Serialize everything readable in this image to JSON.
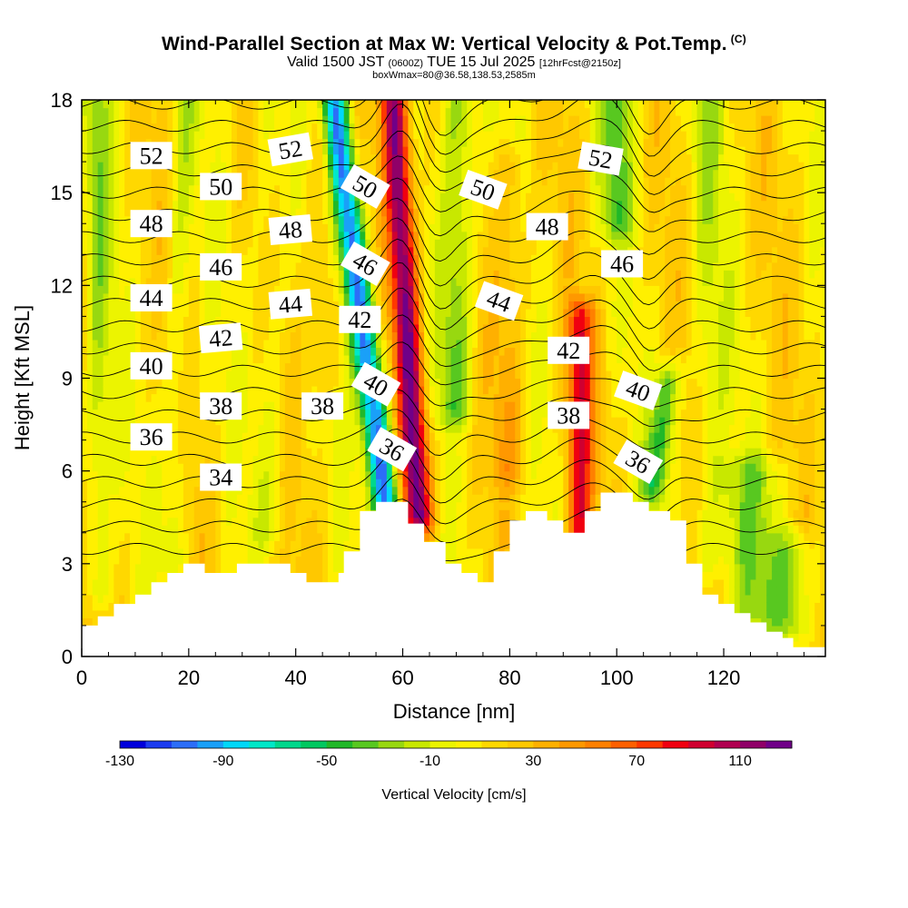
{
  "title": {
    "main": "Wind-Parallel Section at Max W: Vertical Velocity & Pot.Temp.",
    "copyright": "(C)",
    "valid": "Valid 1500 JST",
    "zulu": "(0600Z)",
    "date": "TUE 15 Jul 2025",
    "forecast": "[12hrFcst@2150z]",
    "box_info": "boxWmax=80@36.58,138.53,2585m"
  },
  "chart_data": {
    "type": "heatmap",
    "xlabel": "Distance [nm]",
    "ylabel": "Height [Kft MSL]",
    "xlim": [
      0,
      139
    ],
    "ylim": [
      0,
      18
    ],
    "x_ticks": [
      "0",
      "20",
      "40",
      "60",
      "80",
      "100",
      "120"
    ],
    "x_tick_values": [
      0,
      20,
      40,
      60,
      80,
      100,
      120
    ],
    "y_ticks": [
      "0",
      "3",
      "6",
      "9",
      "12",
      "15",
      "18"
    ],
    "y_tick_values": [
      0,
      3,
      6,
      9,
      12,
      15,
      18
    ],
    "colorbar": {
      "label": "Vertical Velocity [cm/s]",
      "min": -130,
      "max": 130,
      "step": 10,
      "tick_labels": [
        "-130",
        "-90",
        "-50",
        "-10",
        "30",
        "70",
        "110"
      ],
      "tick_values": [
        -130,
        -90,
        -50,
        -10,
        30,
        70,
        110
      ],
      "colors": [
        "#0000dc",
        "#1c3cf0",
        "#2c6ef8",
        "#1aa0f8",
        "#00d8f8",
        "#00e8c8",
        "#00d88c",
        "#00c860",
        "#20b828",
        "#58c820",
        "#98d810",
        "#c8e800",
        "#ecf400",
        "#fff000",
        "#ffd800",
        "#ffc800",
        "#ffb000",
        "#ff9800",
        "#ff8000",
        "#ff6000",
        "#ff3800",
        "#f00010",
        "#d00030",
        "#b00050",
        "#900068",
        "#700088"
      ]
    },
    "terrain_kft": [
      [
        0,
        1.0
      ],
      [
        3,
        1.0
      ],
      [
        3,
        1.3
      ],
      [
        6,
        1.3
      ],
      [
        6,
        1.7
      ],
      [
        10,
        1.7
      ],
      [
        10,
        2.0
      ],
      [
        13,
        2.0
      ],
      [
        13,
        2.4
      ],
      [
        16,
        2.4
      ],
      [
        16,
        2.7
      ],
      [
        19,
        2.7
      ],
      [
        19,
        3.0
      ],
      [
        23,
        3.0
      ],
      [
        23,
        2.7
      ],
      [
        29,
        2.7
      ],
      [
        29,
        3.0
      ],
      [
        39,
        3.0
      ],
      [
        39,
        2.7
      ],
      [
        42,
        2.7
      ],
      [
        42,
        2.4
      ],
      [
        48,
        2.4
      ],
      [
        48,
        2.7
      ],
      [
        49,
        2.7
      ],
      [
        49,
        3.4
      ],
      [
        52,
        3.4
      ],
      [
        52,
        4.7
      ],
      [
        55,
        4.7
      ],
      [
        55,
        5.0
      ],
      [
        61,
        5.0
      ],
      [
        61,
        4.3
      ],
      [
        64,
        4.3
      ],
      [
        64,
        3.7
      ],
      [
        68,
        3.7
      ],
      [
        68,
        3.0
      ],
      [
        71,
        3.0
      ],
      [
        71,
        2.7
      ],
      [
        74,
        2.7
      ],
      [
        74,
        2.4
      ],
      [
        77,
        2.4
      ],
      [
        77,
        3.4
      ],
      [
        80,
        3.4
      ],
      [
        80,
        4.4
      ],
      [
        83,
        4.4
      ],
      [
        83,
        4.7
      ],
      [
        87,
        4.7
      ],
      [
        87,
        4.4
      ],
      [
        90,
        4.4
      ],
      [
        90,
        4.0
      ],
      [
        94,
        4.0
      ],
      [
        94,
        4.7
      ],
      [
        97,
        4.7
      ],
      [
        97,
        5.3
      ],
      [
        103,
        5.3
      ],
      [
        103,
        5.0
      ],
      [
        106,
        5.0
      ],
      [
        106,
        4.7
      ],
      [
        110,
        4.7
      ],
      [
        110,
        4.4
      ],
      [
        113,
        4.4
      ],
      [
        113,
        3.0
      ],
      [
        116,
        3.0
      ],
      [
        116,
        2.0
      ],
      [
        119,
        2.0
      ],
      [
        119,
        1.7
      ],
      [
        122,
        1.7
      ],
      [
        122,
        1.4
      ],
      [
        125,
        1.4
      ],
      [
        125,
        1.1
      ],
      [
        128,
        1.1
      ],
      [
        128,
        0.8
      ],
      [
        131,
        0.8
      ],
      [
        131,
        0.6
      ],
      [
        133,
        0.6
      ],
      [
        133,
        0.3
      ],
      [
        139,
        0.3
      ]
    ],
    "w_features": [
      {
        "x": 57,
        "y0": 4.8,
        "y1": 18,
        "lean": -0.75,
        "width": 2.6,
        "amp": -125
      },
      {
        "x": 63,
        "y0": 4.5,
        "y1": 18,
        "lean": -0.35,
        "width": 2.6,
        "amp": 115
      },
      {
        "x": 70,
        "y0": 8,
        "y1": 18,
        "lean": 0.05,
        "width": 3.2,
        "amp": -45
      },
      {
        "x": 93,
        "y0": 4.0,
        "y1": 11,
        "lean": 0.05,
        "width": 2.4,
        "amp": 70
      },
      {
        "x": 107,
        "y0": 5.5,
        "y1": 9,
        "lean": 0.8,
        "width": 2.2,
        "amp": -55
      },
      {
        "x": 100,
        "y0": 14,
        "y1": 18,
        "lean": 0.0,
        "width": 3.0,
        "amp": -40
      },
      {
        "x": 3,
        "y0": 2,
        "y1": 18,
        "lean": 0.0,
        "width": 2.5,
        "amp": -30
      },
      {
        "x": 17,
        "y0": 3,
        "y1": 18,
        "lean": 0.15,
        "width": 2.3,
        "amp": -22
      },
      {
        "x": 35,
        "y0": 4,
        "y1": 18,
        "lean": 0.0,
        "width": 3.0,
        "amp": -18
      },
      {
        "x": 45,
        "y0": 9,
        "y1": 18,
        "lean": 0.0,
        "width": 2.8,
        "amp": 20
      },
      {
        "x": 80,
        "y0": 6,
        "y1": 16,
        "lean": 0.0,
        "width": 3.0,
        "amp": 25
      },
      {
        "x": 117,
        "y0": 3,
        "y1": 18,
        "lean": 0.0,
        "width": 3.5,
        "amp": -20
      },
      {
        "x": 125,
        "y0": 1.5,
        "y1": 6,
        "lean": 0.0,
        "width": 6,
        "amp": -30
      },
      {
        "x": 133,
        "y0": 1,
        "y1": 3.5,
        "lean": 0.0,
        "width": 4,
        "amp": -35
      }
    ],
    "theta_contours": {
      "min": 33,
      "max": 53,
      "step": 1,
      "base_height_kft": 4.2,
      "kft_per_unit": 0.72,
      "perturbations": [
        {
          "x": 60,
          "width": 5,
          "dy": 0.9
        },
        {
          "x": 66,
          "width": 5,
          "dy": -0.6
        },
        {
          "x": 95,
          "width": 8,
          "dy": 0.5
        },
        {
          "x": 106,
          "width": 4,
          "dy": -0.5
        }
      ]
    },
    "contour_labels": [
      {
        "value": "52",
        "x": 13,
        "y": 16.2,
        "angle": 0
      },
      {
        "value": "52",
        "x": 39,
        "y": 16.4,
        "angle": -10
      },
      {
        "value": "52",
        "x": 97,
        "y": 16.1,
        "angle": 10
      },
      {
        "value": "50",
        "x": 26,
        "y": 15.2,
        "angle": 0
      },
      {
        "value": "50",
        "x": 53,
        "y": 15.2,
        "angle": 30
      },
      {
        "value": "50",
        "x": 75,
        "y": 15.1,
        "angle": 20
      },
      {
        "value": "48",
        "x": 13,
        "y": 14.0,
        "angle": 0
      },
      {
        "value": "48",
        "x": 39,
        "y": 13.8,
        "angle": -5
      },
      {
        "value": "48",
        "x": 87,
        "y": 13.9,
        "angle": 0
      },
      {
        "value": "46",
        "x": 26,
        "y": 12.6,
        "angle": 0
      },
      {
        "value": "46",
        "x": 53,
        "y": 12.7,
        "angle": 30
      },
      {
        "value": "46",
        "x": 101,
        "y": 12.7,
        "angle": 0
      },
      {
        "value": "44",
        "x": 13,
        "y": 11.6,
        "angle": 0
      },
      {
        "value": "44",
        "x": 39,
        "y": 11.4,
        "angle": -5
      },
      {
        "value": "44",
        "x": 78,
        "y": 11.5,
        "angle": 20
      },
      {
        "value": "42",
        "x": 26,
        "y": 10.3,
        "angle": -5
      },
      {
        "value": "42",
        "x": 52,
        "y": 10.9,
        "angle": 0
      },
      {
        "value": "42",
        "x": 91,
        "y": 9.9,
        "angle": 0
      },
      {
        "value": "40",
        "x": 13,
        "y": 9.4,
        "angle": 0
      },
      {
        "value": "40",
        "x": 55,
        "y": 8.8,
        "angle": 30
      },
      {
        "value": "40",
        "x": 104,
        "y": 8.6,
        "angle": 20
      },
      {
        "value": "38",
        "x": 26,
        "y": 8.1,
        "angle": 0
      },
      {
        "value": "38",
        "x": 45,
        "y": 8.1,
        "angle": 0
      },
      {
        "value": "38",
        "x": 91,
        "y": 7.8,
        "angle": 0
      },
      {
        "value": "36",
        "x": 13,
        "y": 7.1,
        "angle": 0
      },
      {
        "value": "36",
        "x": 58,
        "y": 6.7,
        "angle": 30
      },
      {
        "value": "36",
        "x": 104,
        "y": 6.3,
        "angle": 30
      },
      {
        "value": "34",
        "x": 26,
        "y": 5.8,
        "angle": 0
      }
    ]
  }
}
